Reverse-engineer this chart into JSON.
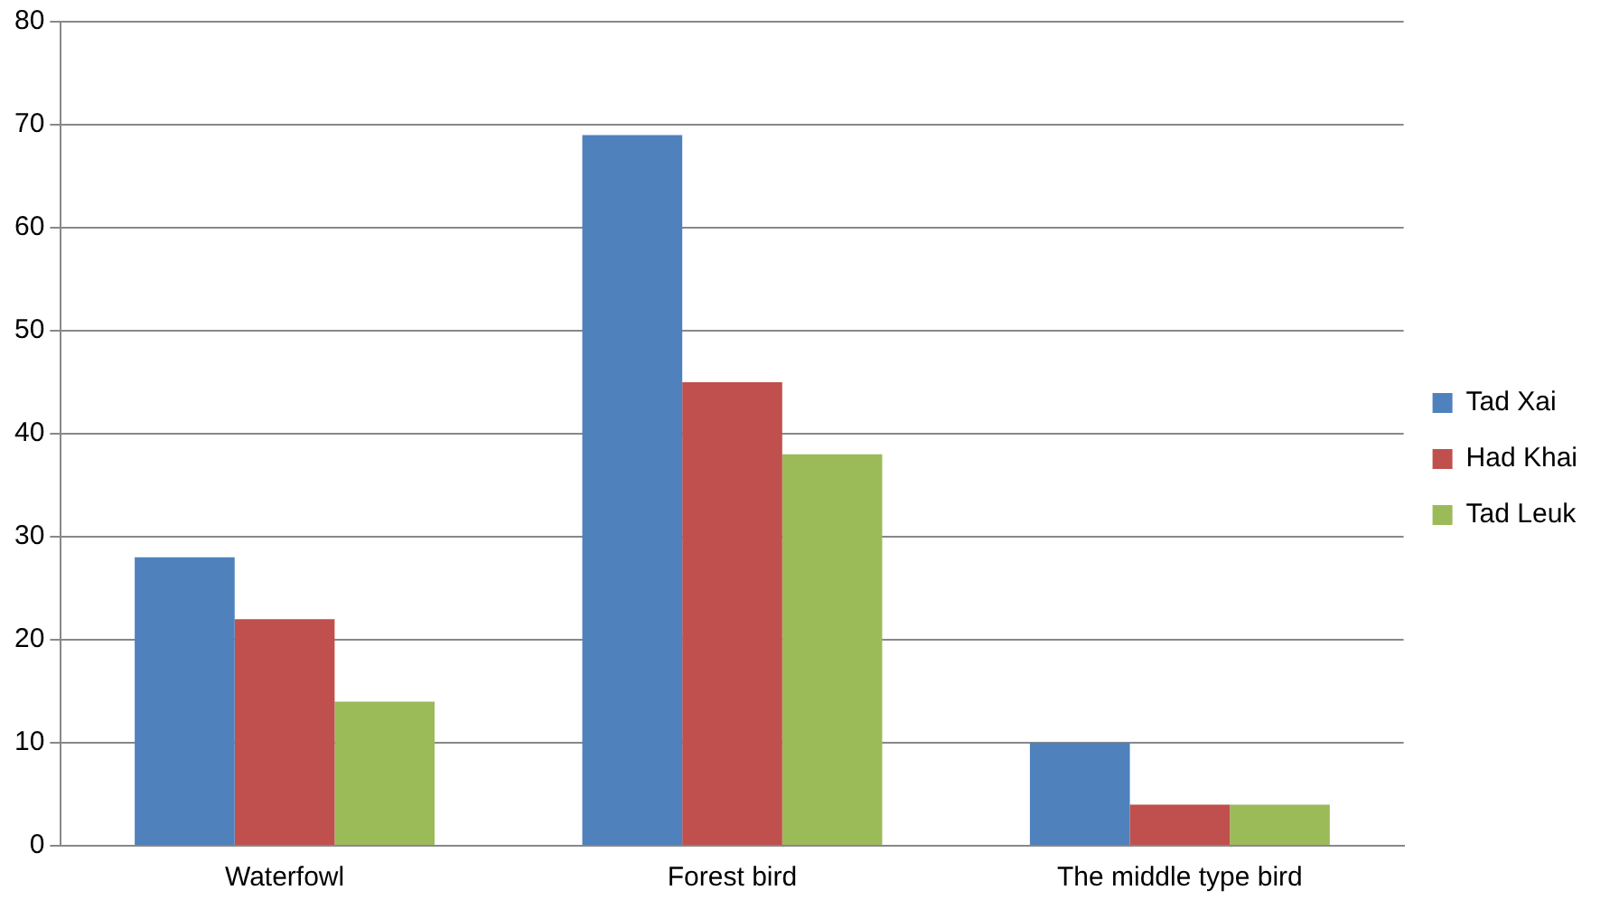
{
  "chart_data": {
    "type": "bar",
    "categories": [
      "Waterfowl",
      "Forest bird",
      "The middle type bird"
    ],
    "series": [
      {
        "name": "Tad Xai",
        "color": "#4f81bd",
        "values": [
          28,
          69,
          10
        ]
      },
      {
        "name": "Had Khai",
        "color": "#c0504d",
        "values": [
          22,
          45,
          4
        ]
      },
      {
        "name": "Tad Leuk",
        "color": "#9bbb59",
        "values": [
          14,
          38,
          4
        ]
      }
    ],
    "ylim": [
      0,
      80
    ],
    "yticks": [
      0,
      10,
      20,
      30,
      40,
      50,
      60,
      70,
      80
    ],
    "grid": "y",
    "legend": "right"
  }
}
